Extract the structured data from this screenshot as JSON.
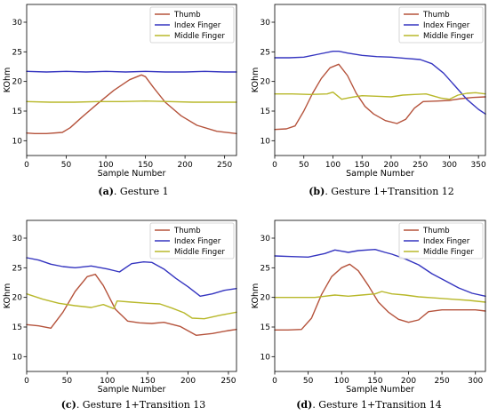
{
  "chart_data": [
    {
      "panel": "a",
      "type": "line",
      "caption_label": "(a)",
      "caption_text": ". Gesture 1",
      "xlabel": "Sample Number",
      "ylabel": "KOhm",
      "xlim": [
        0,
        265
      ],
      "ylim": [
        7.5,
        33
      ],
      "xticks": [
        0,
        50,
        100,
        150,
        200,
        250
      ],
      "yticks": [
        10,
        15,
        20,
        25,
        30
      ],
      "legend_position": "top-right",
      "series": [
        {
          "name": "Thumb",
          "color": "#b5533c",
          "x": [
            0,
            10,
            25,
            45,
            55,
            70,
            90,
            110,
            130,
            145,
            150,
            160,
            175,
            195,
            215,
            240,
            265
          ],
          "y": [
            11.3,
            11.2,
            11.2,
            11.4,
            12.2,
            14.0,
            16.3,
            18.5,
            20.3,
            21.1,
            20.8,
            19.0,
            16.5,
            14.2,
            12.6,
            11.6,
            11.2
          ]
        },
        {
          "name": "Index Finger",
          "color": "#3535c0",
          "x": [
            0,
            25,
            50,
            75,
            100,
            125,
            150,
            175,
            200,
            225,
            250,
            265
          ],
          "y": [
            21.7,
            21.6,
            21.7,
            21.6,
            21.7,
            21.6,
            21.7,
            21.6,
            21.6,
            21.7,
            21.6,
            21.6
          ]
        },
        {
          "name": "Middle Finger",
          "color": "#b8b82a",
          "x": [
            0,
            30,
            60,
            90,
            120,
            150,
            180,
            210,
            240,
            265
          ],
          "y": [
            16.6,
            16.5,
            16.5,
            16.6,
            16.6,
            16.7,
            16.6,
            16.5,
            16.5,
            16.5
          ]
        }
      ]
    },
    {
      "panel": "b",
      "type": "line",
      "caption_label": "(b)",
      "caption_text": ". Gesture 1+Transition 12",
      "xlabel": "Sample Number",
      "ylabel": "KOhm",
      "xlim": [
        0,
        362
      ],
      "ylim": [
        7.5,
        33
      ],
      "xticks": [
        0,
        50,
        100,
        150,
        200,
        250,
        300,
        350
      ],
      "yticks": [
        10,
        15,
        20,
        25,
        30
      ],
      "legend_position": "top-right",
      "series": [
        {
          "name": "Thumb",
          "color": "#b5533c",
          "x": [
            0,
            20,
            35,
            50,
            65,
            80,
            95,
            110,
            125,
            140,
            155,
            170,
            190,
            210,
            225,
            240,
            255,
            280,
            300,
            320,
            340,
            362
          ],
          "y": [
            11.9,
            12.0,
            12.5,
            15.0,
            18.0,
            20.5,
            22.3,
            22.9,
            21.0,
            18.0,
            15.8,
            14.5,
            13.4,
            12.9,
            13.6,
            15.5,
            16.6,
            16.7,
            16.8,
            17.1,
            17.3,
            17.4
          ]
        },
        {
          "name": "Index Finger",
          "color": "#3535c0",
          "x": [
            0,
            25,
            50,
            75,
            100,
            110,
            125,
            150,
            175,
            200,
            225,
            250,
            270,
            290,
            310,
            330,
            350,
            362
          ],
          "y": [
            24.0,
            24.0,
            24.1,
            24.6,
            25.1,
            25.1,
            24.8,
            24.4,
            24.2,
            24.1,
            23.9,
            23.7,
            23.0,
            21.4,
            19.2,
            17.0,
            15.3,
            14.5
          ]
        },
        {
          "name": "Middle Finger",
          "color": "#b8b82a",
          "x": [
            0,
            30,
            60,
            90,
            100,
            115,
            130,
            150,
            175,
            200,
            220,
            240,
            260,
            285,
            300,
            315,
            330,
            345,
            362
          ],
          "y": [
            17.9,
            17.9,
            17.8,
            17.9,
            18.2,
            17.0,
            17.3,
            17.6,
            17.5,
            17.4,
            17.7,
            17.8,
            17.9,
            17.2,
            17.0,
            17.7,
            18.0,
            18.1,
            17.9
          ]
        }
      ]
    },
    {
      "panel": "c",
      "type": "line",
      "caption_label": "(c)",
      "caption_text": ". Gesture 1+Transition 13",
      "xlabel": "Sample Number",
      "ylabel": "KOhm",
      "xlim": [
        0,
        260
      ],
      "ylim": [
        7.5,
        33
      ],
      "xticks": [
        0,
        50,
        100,
        150,
        200,
        250
      ],
      "yticks": [
        10,
        15,
        20,
        25,
        30
      ],
      "legend_position": "top-right",
      "series": [
        {
          "name": "Thumb",
          "color": "#b5533c",
          "x": [
            0,
            15,
            30,
            45,
            60,
            75,
            85,
            95,
            110,
            125,
            140,
            155,
            170,
            190,
            210,
            230,
            250,
            260
          ],
          "y": [
            15.4,
            15.2,
            14.8,
            17.5,
            21.0,
            23.5,
            23.9,
            22.0,
            18.0,
            16.0,
            15.7,
            15.6,
            15.8,
            15.1,
            13.6,
            13.9,
            14.4,
            14.6
          ]
        },
        {
          "name": "Index Finger",
          "color": "#3535c0",
          "x": [
            0,
            15,
            30,
            45,
            60,
            80,
            100,
            115,
            130,
            145,
            155,
            170,
            185,
            200,
            215,
            230,
            245,
            260
          ],
          "y": [
            26.7,
            26.3,
            25.6,
            25.2,
            25.0,
            25.3,
            24.8,
            24.3,
            25.7,
            26.0,
            25.9,
            24.8,
            23.2,
            21.8,
            20.2,
            20.6,
            21.2,
            21.5
          ]
        },
        {
          "name": "Middle Finger",
          "color": "#b8b82a",
          "x": [
            0,
            20,
            40,
            60,
            80,
            95,
            108,
            112,
            130,
            150,
            165,
            180,
            195,
            205,
            220,
            240,
            260
          ],
          "y": [
            20.6,
            19.7,
            19.0,
            18.6,
            18.3,
            18.8,
            18.1,
            19.4,
            19.2,
            19.0,
            18.9,
            18.2,
            17.4,
            16.5,
            16.4,
            17.0,
            17.5
          ]
        }
      ]
    },
    {
      "panel": "d",
      "type": "line",
      "caption_label": "(d)",
      "caption_text": ". Gesture 1+Transition 14",
      "xlabel": "Sample Number",
      "ylabel": "KOhm",
      "xlim": [
        0,
        315
      ],
      "ylim": [
        7.5,
        33
      ],
      "xticks": [
        0,
        50,
        100,
        150,
        200,
        250,
        300
      ],
      "yticks": [
        10,
        15,
        20,
        25,
        30
      ],
      "legend_position": "top-right",
      "series": [
        {
          "name": "Thumb",
          "color": "#b5533c",
          "x": [
            0,
            20,
            40,
            55,
            70,
            85,
            100,
            112,
            125,
            140,
            155,
            170,
            185,
            200,
            215,
            230,
            250,
            275,
            300,
            315
          ],
          "y": [
            14.5,
            14.5,
            14.6,
            16.5,
            20.5,
            23.5,
            25.0,
            25.6,
            24.5,
            22.0,
            19.2,
            17.5,
            16.3,
            15.8,
            16.2,
            17.6,
            17.9,
            17.9,
            17.9,
            17.7
          ]
        },
        {
          "name": "Index Finger",
          "color": "#3535c0",
          "x": [
            0,
            25,
            50,
            75,
            90,
            110,
            125,
            150,
            165,
            175,
            195,
            215,
            235,
            255,
            275,
            295,
            315
          ],
          "y": [
            27.0,
            26.9,
            26.8,
            27.4,
            28.0,
            27.6,
            27.9,
            28.1,
            27.6,
            27.3,
            26.5,
            25.5,
            24.0,
            22.8,
            21.6,
            20.7,
            20.2
          ]
        },
        {
          "name": "Middle Finger",
          "color": "#b8b82a",
          "x": [
            0,
            30,
            60,
            90,
            110,
            130,
            150,
            160,
            175,
            195,
            215,
            240,
            265,
            290,
            315
          ],
          "y": [
            20.0,
            20.0,
            20.0,
            20.4,
            20.2,
            20.4,
            20.6,
            21.0,
            20.6,
            20.4,
            20.1,
            19.9,
            19.7,
            19.5,
            19.2
          ]
        }
      ]
    }
  ]
}
